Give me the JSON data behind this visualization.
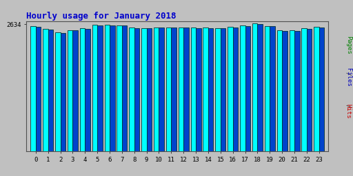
{
  "title": "Hourly usage for January 2018",
  "hours": [
    0,
    1,
    2,
    3,
    4,
    5,
    6,
    7,
    8,
    9,
    10,
    11,
    12,
    13,
    14,
    15,
    16,
    17,
    18,
    19,
    20,
    21,
    22,
    23
  ],
  "bar1_values": [
    2595,
    2540,
    2470,
    2515,
    2548,
    2620,
    2625,
    2615,
    2565,
    2560,
    2572,
    2572,
    2572,
    2568,
    2562,
    2558,
    2580,
    2610,
    2650,
    2600,
    2505,
    2508,
    2550,
    2575
  ],
  "bar2_values": [
    2583,
    2528,
    2460,
    2505,
    2538,
    2610,
    2615,
    2605,
    2555,
    2550,
    2562,
    2562,
    2562,
    2558,
    2552,
    2548,
    2570,
    2600,
    2638,
    2590,
    2495,
    2498,
    2540,
    2565
  ],
  "bar1_color": "#00FFFF",
  "bar2_color": "#0044CC",
  "bar_edge_color": "#003333",
  "bg_color": "#C0C0C0",
  "title_color": "#0000CC",
  "ymin": 0,
  "ymax": 2700,
  "ytick_val": 2634,
  "bar_width": 0.42,
  "right_label_pages_color": "#008000",
  "right_label_files_color": "#0000BB",
  "right_label_hits_color": "#CC0000"
}
